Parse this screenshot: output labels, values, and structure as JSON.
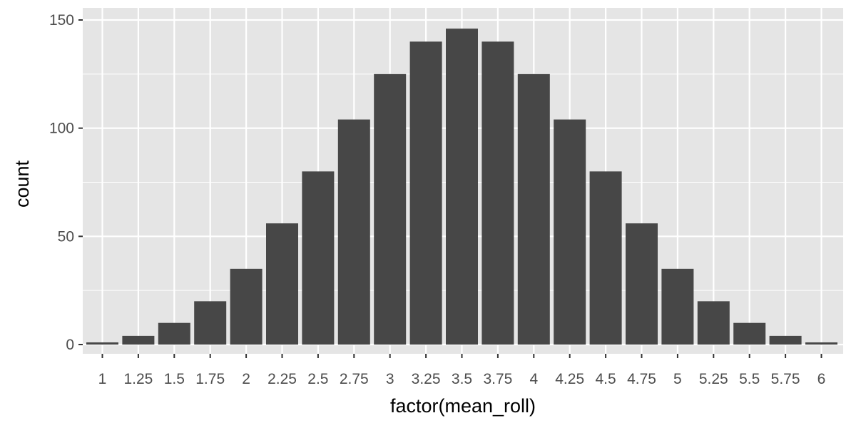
{
  "chart_data": {
    "type": "bar",
    "title": "",
    "xlabel": "factor(mean_roll)",
    "ylabel": "count",
    "categories": [
      "1",
      "1.25",
      "1.5",
      "1.75",
      "2",
      "2.25",
      "2.5",
      "2.75",
      "3",
      "3.25",
      "3.5",
      "3.75",
      "4",
      "4.25",
      "4.5",
      "4.75",
      "5",
      "5.25",
      "5.5",
      "5.75",
      "6"
    ],
    "values": [
      1,
      4,
      10,
      20,
      35,
      56,
      80,
      104,
      125,
      140,
      146,
      140,
      125,
      104,
      80,
      56,
      35,
      20,
      10,
      4,
      1
    ],
    "ylim": [
      0,
      150
    ],
    "yticks": [
      0,
      50,
      100,
      150
    ],
    "grid": true,
    "colors": {
      "panel_background": "#e5e5e5",
      "grid_line": "#ffffff",
      "bar_fill": "#474747",
      "tick_text": "#4d4d4d",
      "axis_title_text": "#000000"
    }
  }
}
